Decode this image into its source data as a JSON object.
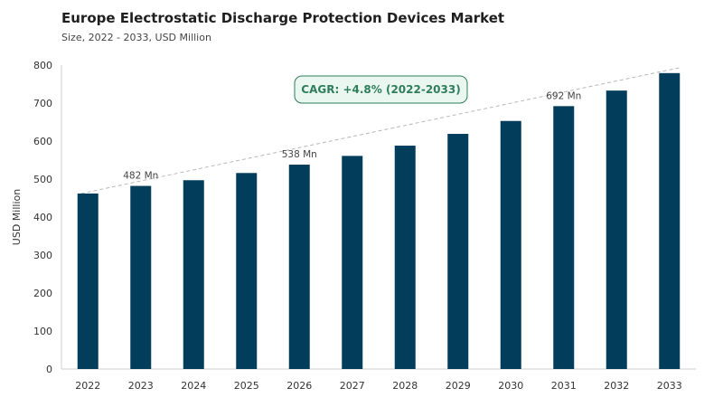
{
  "chart_data": {
    "type": "bar",
    "title": "Europe Electrostatic Discharge Protection Devices Market",
    "subtitle": "Size, 2022 - 2033, USD Million",
    "ylabel": "USD Million",
    "xlabel": "",
    "categories": [
      "2022",
      "2023",
      "2024",
      "2025",
      "2026",
      "2027",
      "2028",
      "2029",
      "2030",
      "2031",
      "2032",
      "2033"
    ],
    "values": [
      462,
      482,
      497,
      516,
      538,
      561,
      588,
      619,
      653,
      692,
      733,
      779
    ],
    "ylim": [
      0,
      800
    ],
    "yticks": [
      0,
      100,
      200,
      300,
      400,
      500,
      600,
      700,
      800
    ],
    "grid": false,
    "bar_color": "#033d5c",
    "data_labels": [
      {
        "index": 1,
        "text": "482 Mn"
      },
      {
        "index": 4,
        "text": "538 Mn"
      },
      {
        "index": 9,
        "text": "692 Mn"
      }
    ],
    "annotation": {
      "text": "CAGR: +4.8% (2022-2033)",
      "color": "#2f7d5a",
      "background": "#eaf7f0"
    },
    "trend_line": {
      "style": "dashed",
      "color": "#b8b8b8"
    }
  }
}
